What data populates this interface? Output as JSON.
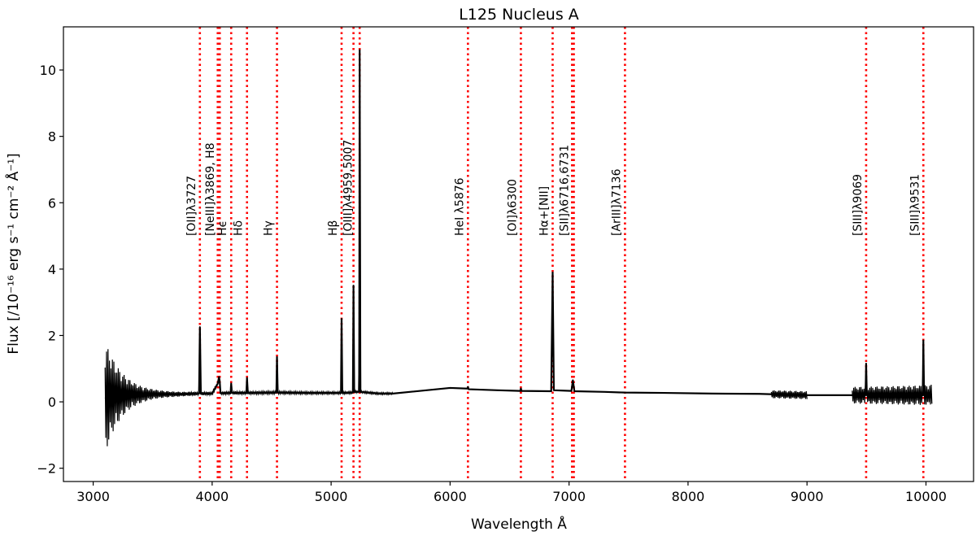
{
  "chart_data": {
    "type": "line",
    "title": "L125 Nucleus A",
    "xlabel": "Wavelength Å",
    "ylabel": "Flux  [/10⁻¹⁶ erg s⁻¹ cm⁻² Å⁻¹]",
    "xlim": [
      2750,
      10400
    ],
    "ylim": [
      -2.4,
      11.3
    ],
    "xticks": [
      3000,
      4000,
      5000,
      6000,
      7000,
      8000,
      9000,
      10000
    ],
    "xtick_labels": [
      "3000",
      "4000",
      "5000",
      "6000",
      "7000",
      "8000",
      "9000",
      "10000"
    ],
    "yticks": [
      -2,
      0,
      2,
      4,
      6,
      8,
      10
    ],
    "ytick_labels": [
      "−2",
      "0",
      "2",
      "4",
      "6",
      "8",
      "10"
    ],
    "grid": false,
    "colors": {
      "spectrum": "#000000",
      "lines": "#ff0000"
    },
    "emission_lines": [
      {
        "label": "[OII]λ3727",
        "x": [
          3897
        ]
      },
      {
        "label": "[NeIII]λ3869, H8",
        "x": [
          4047,
          4058,
          4064
        ]
      },
      {
        "label": "Hϵ",
        "x": [
          4160
        ]
      },
      {
        "label": "Hδ",
        "x": [
          4293
        ]
      },
      {
        "label": "Hγ",
        "x": [
          4545
        ]
      },
      {
        "label": "Hβ",
        "x": [
          5088
        ]
      },
      {
        "label": "[OIII]λ4959,5007",
        "x": [
          5188,
          5240
        ]
      },
      {
        "label": "HeI λ5876",
        "x": [
          6150
        ]
      },
      {
        "label": "[OI]λ6300",
        "x": [
          6595
        ]
      },
      {
        "label": "Hα+[NII]",
        "x": [
          6862
        ]
      },
      {
        "label": "[SII]λ6716,6731",
        "x": [
          7025,
          7040
        ]
      },
      {
        "label": "[ArIII]λ7136",
        "x": [
          7470
        ]
      },
      {
        "label": "[SIII]λ9069",
        "x": [
          9497
        ]
      },
      {
        "label": "[SIII]λ9531",
        "x": [
          9978
        ]
      }
    ],
    "series": [
      {
        "x": [
          3100,
          3150,
          3200,
          3300,
          3400,
          3500,
          3600,
          3700,
          3800,
          3890,
          3897,
          3905,
          4000,
          4047,
          4058,
          4064,
          4070,
          4155,
          4160,
          4166,
          4288,
          4293,
          4300,
          4540,
          4545,
          4551,
          4800,
          5083,
          5088,
          5094,
          5183,
          5188,
          5194,
          5236,
          5240,
          5246,
          5400,
          5520,
          6000,
          6145,
          6150,
          6156,
          6400,
          6590,
          6595,
          6601,
          6850,
          6862,
          6872,
          7020,
          7032,
          7045,
          7300,
          7470,
          7800,
          8200,
          8600,
          8800,
          9000,
          9400,
          9492,
          9497,
          9503,
          9700,
          9973,
          9978,
          9984,
          10050
        ],
        "values": [
          0.1,
          0.2,
          0.2,
          0.22,
          0.22,
          0.23,
          0.23,
          0.23,
          0.24,
          0.25,
          2.25,
          0.25,
          0.25,
          0.55,
          0.75,
          0.6,
          0.26,
          0.27,
          0.55,
          0.27,
          0.27,
          0.72,
          0.27,
          0.28,
          1.35,
          0.28,
          0.27,
          0.27,
          2.5,
          0.27,
          0.28,
          3.5,
          0.3,
          0.3,
          10.6,
          0.3,
          0.25,
          0.25,
          0.42,
          0.4,
          0.45,
          0.38,
          0.35,
          0.33,
          0.4,
          0.33,
          0.32,
          3.9,
          0.35,
          0.33,
          0.65,
          0.32,
          0.3,
          0.28,
          0.27,
          0.25,
          0.24,
          0.22,
          0.2,
          0.2,
          0.2,
          1.15,
          0.2,
          0.2,
          0.2,
          1.85,
          0.2,
          0.22
        ]
      }
    ],
    "noise_regions": [
      {
        "x_from": 3100,
        "x_to": 3900,
        "amplitude_start": 1.7,
        "amplitude_end": 0.05
      },
      {
        "x_from": 3900,
        "x_to": 5520,
        "amplitude_start": 0.05,
        "amplitude_end": 0.03
      },
      {
        "x_from": 8700,
        "x_to": 9000,
        "amplitude_start": 0.12,
        "amplitude_end": 0.12
      },
      {
        "x_from": 9380,
        "x_to": 10050,
        "amplitude_start": 0.25,
        "amplitude_end": 0.3
      }
    ]
  }
}
